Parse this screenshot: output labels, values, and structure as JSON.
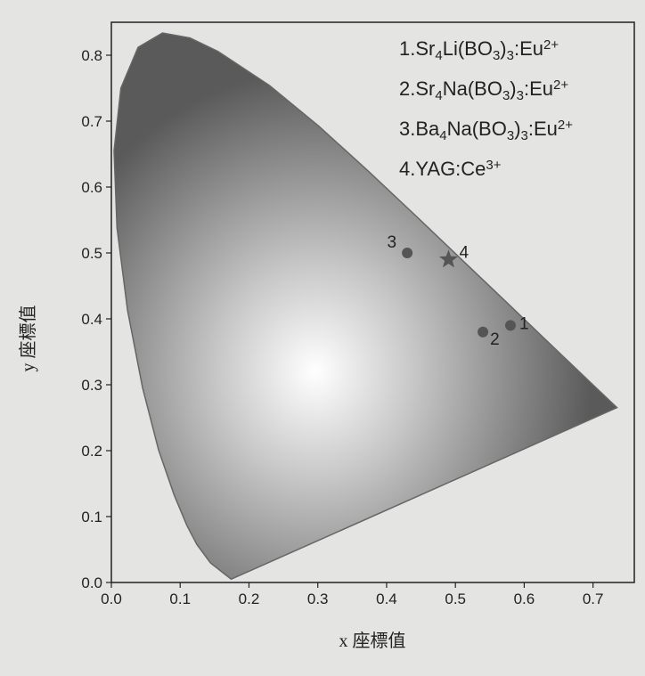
{
  "chart_data": {
    "type": "scatter",
    "x_label": "x 座標值",
    "y_label": "y 座標值",
    "xlim": [
      0,
      0.76
    ],
    "ylim": [
      0,
      0.85
    ],
    "xticks": [
      {
        "value": 0,
        "label": "0.0"
      },
      0.1,
      0.2,
      0.3,
      0.4,
      0.5,
      0.6,
      0.7
    ],
    "yticks": [
      {
        "value": 0,
        "label": "0.0"
      },
      0.1,
      0.2,
      0.3,
      0.4,
      0.5,
      0.6,
      0.7,
      0.8
    ],
    "locus": {
      "color": "#666666",
      "x": [
        0.1741,
        0.144,
        0.1241,
        0.1096,
        0.0913,
        0.0687,
        0.0454,
        0.0235,
        0.0082,
        0.0039,
        0.0139,
        0.0389,
        0.0743,
        0.1142,
        0.1547,
        0.2296,
        0.3016,
        0.3731,
        0.4441,
        0.5125,
        0.5752,
        0.627,
        0.6915,
        0.719,
        0.7347
      ],
      "y": [
        0.005,
        0.0297,
        0.0578,
        0.0868,
        0.1327,
        0.2007,
        0.295,
        0.4127,
        0.5384,
        0.6548,
        0.7502,
        0.812,
        0.8338,
        0.8262,
        0.8059,
        0.7543,
        0.6923,
        0.6245,
        0.5547,
        0.4866,
        0.4242,
        0.3725,
        0.3083,
        0.2809,
        0.2653
      ]
    },
    "series": [
      {
        "name": [
          {
            "t": "1.Sr"
          },
          {
            "t": "4",
            "sub": true
          },
          {
            "t": "Li(BO"
          },
          {
            "t": "3",
            "sub": true
          },
          {
            "t": ")"
          },
          {
            "t": "3",
            "sub": true
          },
          {
            "t": ":Eu"
          },
          {
            "t": "2+",
            "sup": true
          }
        ],
        "label": "1",
        "marker": "circle",
        "color": "#555555",
        "x": [
          0.58
        ],
        "values": [
          0.39
        ]
      },
      {
        "name": [
          {
            "t": "2.Sr"
          },
          {
            "t": "4",
            "sub": true
          },
          {
            "t": "Na(BO"
          },
          {
            "t": "3",
            "sub": true
          },
          {
            "t": ")"
          },
          {
            "t": "3",
            "sub": true
          },
          {
            "t": ":Eu"
          },
          {
            "t": "2+",
            "sup": true
          }
        ],
        "label": "2",
        "marker": "circle",
        "color": "#555555",
        "x": [
          0.54
        ],
        "values": [
          0.38
        ]
      },
      {
        "name": [
          {
            "t": "3.Ba"
          },
          {
            "t": "4",
            "sub": true
          },
          {
            "t": "Na(BO"
          },
          {
            "t": "3",
            "sub": true
          },
          {
            "t": ")"
          },
          {
            "t": "3",
            "sub": true
          },
          {
            "t": ":Eu"
          },
          {
            "t": "2+",
            "sup": true
          }
        ],
        "label": "3",
        "marker": "circle",
        "color": "#555555",
        "x": [
          0.43
        ],
        "values": [
          0.5
        ]
      },
      {
        "name": [
          {
            "t": "4.YAG:Ce"
          },
          {
            "t": "3+",
            "sup": true
          }
        ],
        "label": "4",
        "marker": "star",
        "color": "#555555",
        "x": [
          0.49
        ],
        "values": [
          0.49
        ]
      }
    ]
  }
}
